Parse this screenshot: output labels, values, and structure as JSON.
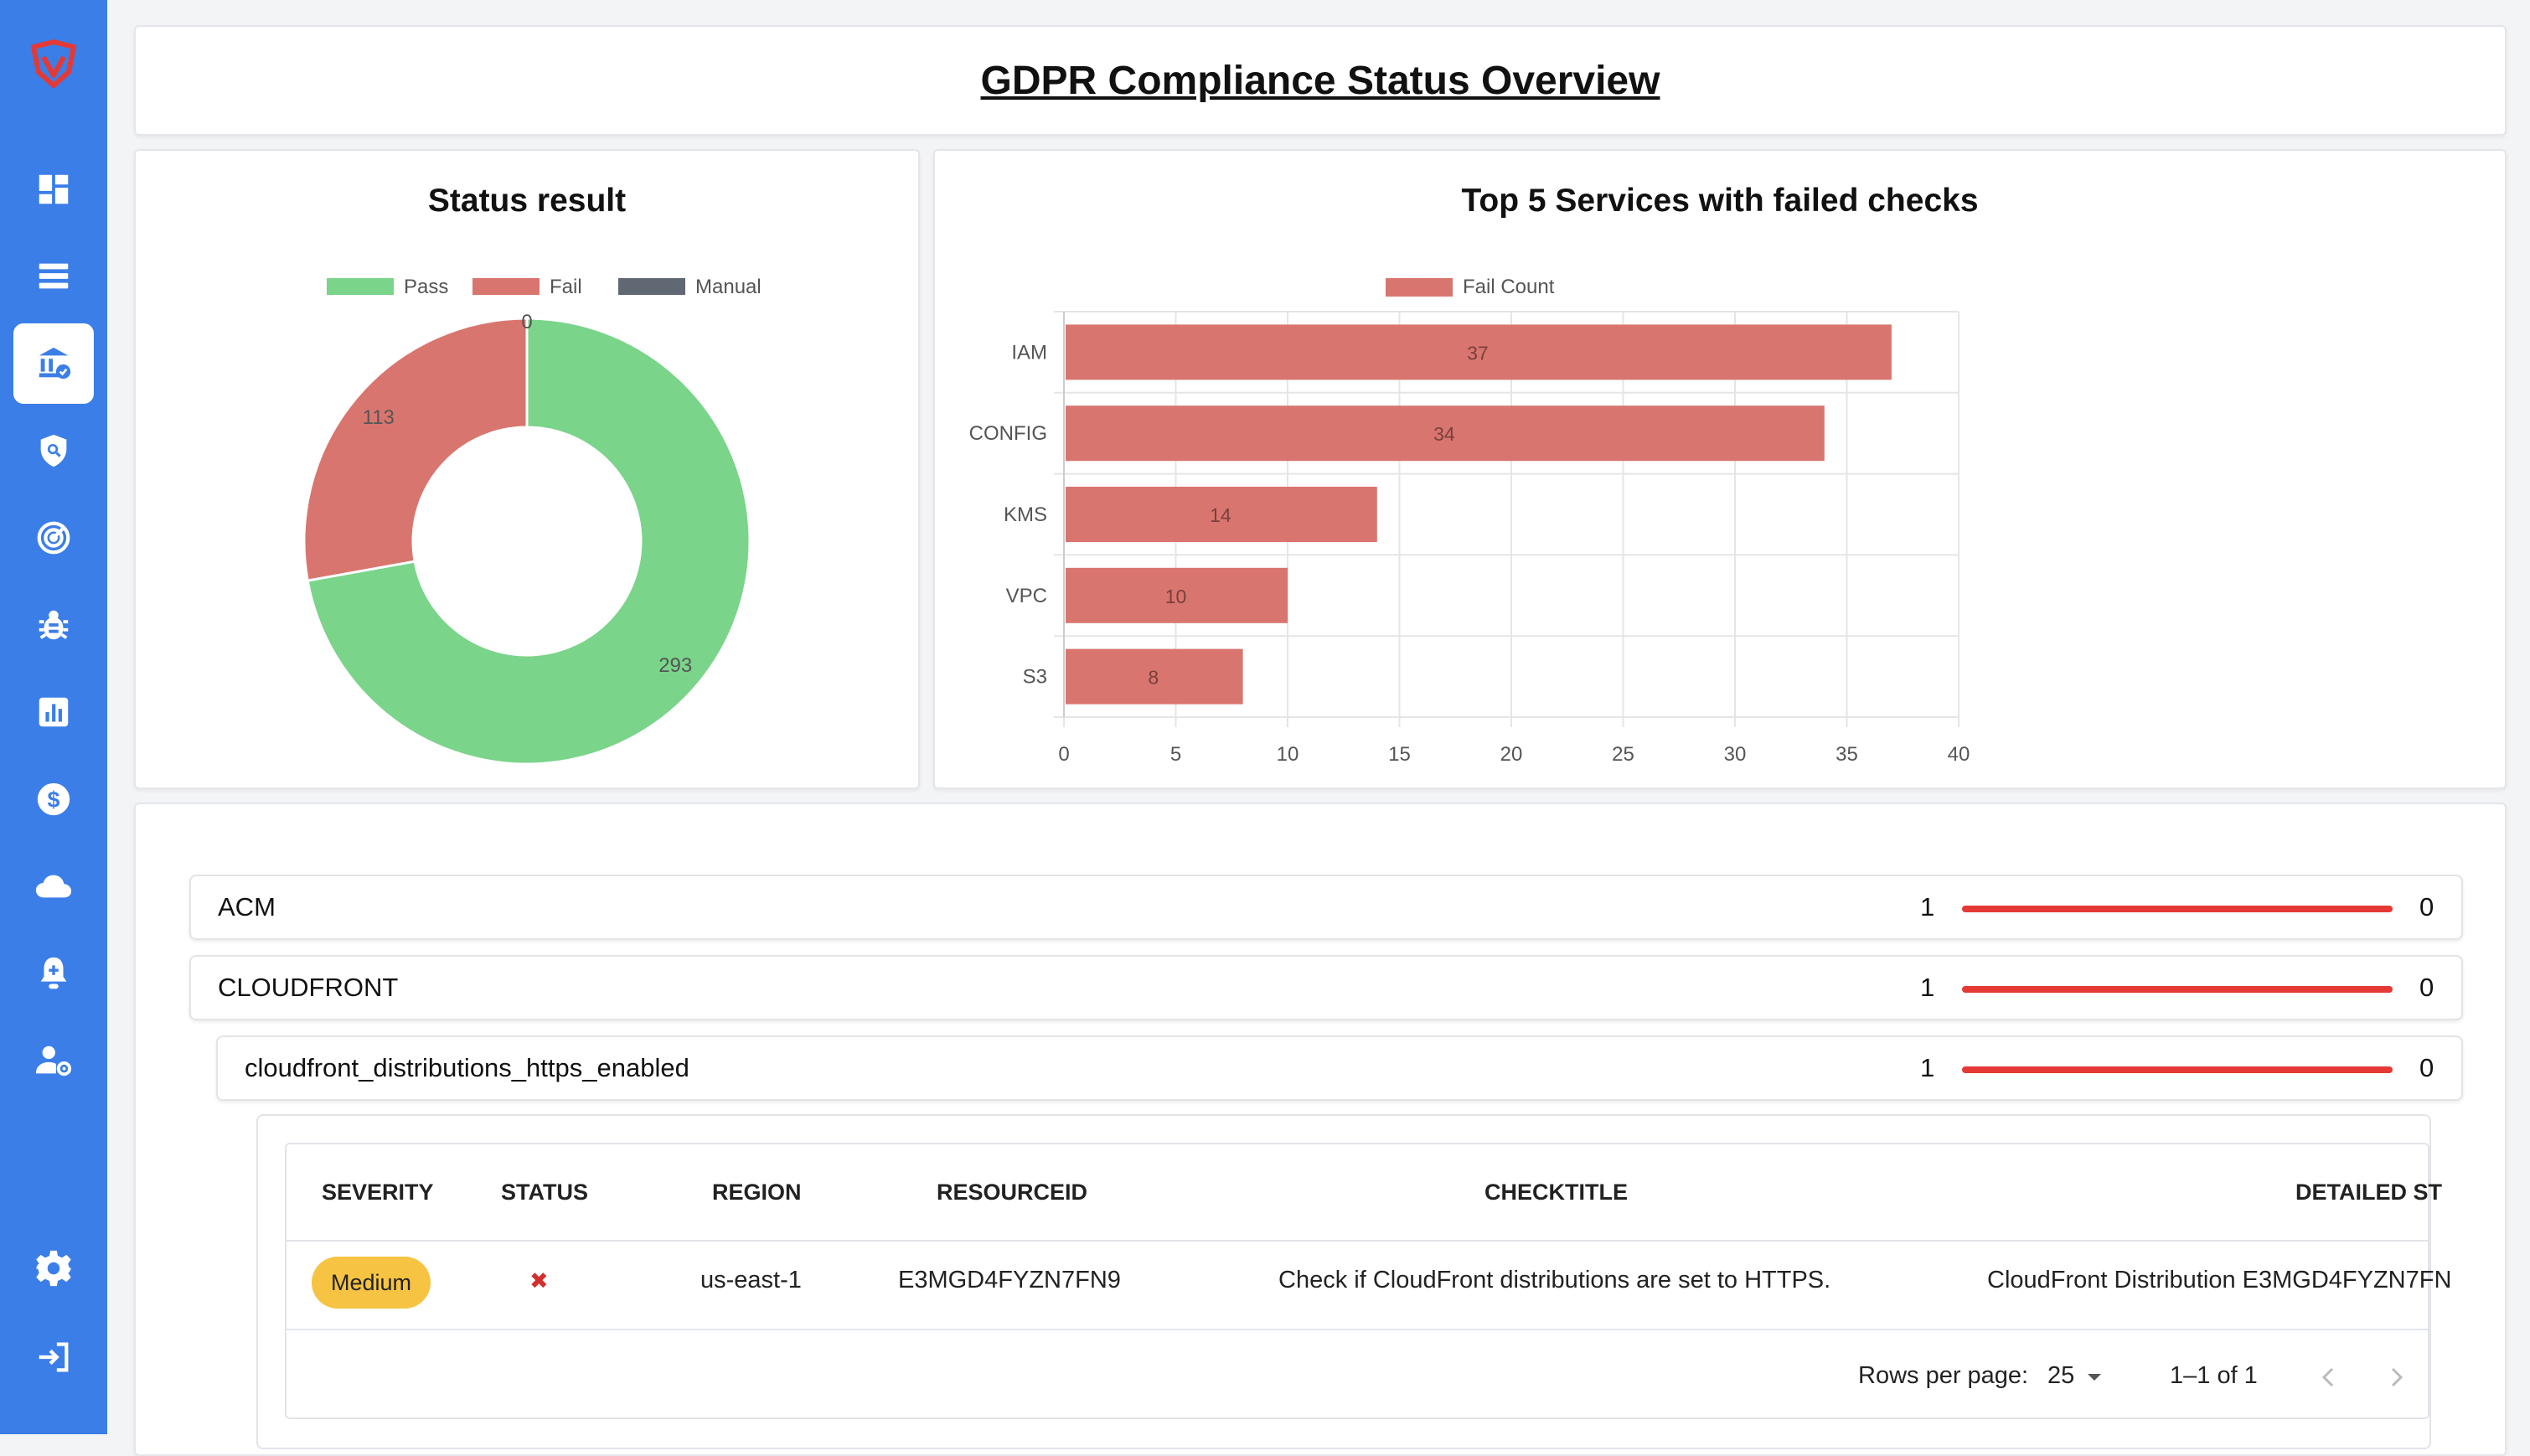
{
  "page": {
    "title": "GDPR Compliance Status Overview"
  },
  "sidebar": {
    "items": [
      {
        "icon": "dashboard-icon"
      },
      {
        "icon": "list-icon"
      },
      {
        "icon": "compliance-icon",
        "active": true
      },
      {
        "icon": "shield-search-icon"
      },
      {
        "icon": "radar-icon"
      },
      {
        "icon": "bug-icon"
      },
      {
        "icon": "bar-chart-icon"
      },
      {
        "icon": "dollar-icon"
      },
      {
        "icon": "cloud-icon"
      },
      {
        "icon": "alert-bell-icon"
      },
      {
        "icon": "user-settings-icon"
      },
      {
        "icon": "gear-icon"
      },
      {
        "icon": "logout-icon"
      }
    ]
  },
  "chart_data": [
    {
      "type": "pie",
      "title": "Status result",
      "legend": [
        "Pass",
        "Fail",
        "Manual"
      ],
      "categories": [
        "Pass",
        "Fail",
        "Manual"
      ],
      "values": [
        293,
        113,
        0
      ],
      "colors": [
        "#7ad48a",
        "#d9756f",
        "#5f6873"
      ],
      "donut": true,
      "legend_position": "top"
    },
    {
      "type": "bar",
      "orientation": "horizontal",
      "title": "Top 5 Services with failed checks",
      "legend": [
        "Fail Count"
      ],
      "categories": [
        "IAM",
        "CONFIG",
        "KMS",
        "VPC",
        "S3"
      ],
      "values": [
        37,
        34,
        14,
        10,
        8
      ],
      "xlim": [
        0,
        40
      ],
      "xticks": [
        0,
        5,
        10,
        15,
        20,
        25,
        30,
        35,
        40
      ],
      "color": "#d9756f",
      "grid": true,
      "legend_position": "top"
    }
  ],
  "accordion": [
    {
      "label": "ACM",
      "count": "1",
      "right": "0"
    },
    {
      "label": "CLOUDFRONT",
      "count": "1",
      "right": "0"
    },
    {
      "label": "cloudfront_distributions_https_enabled",
      "count": "1",
      "right": "0"
    }
  ],
  "table": {
    "headers": [
      "SEVERITY",
      "STATUS",
      "REGION",
      "RESOURCEID",
      "CHECKTITLE",
      "DETAILED ST"
    ],
    "rows": [
      {
        "severity": "Medium",
        "status": "✖",
        "region": "us-east-1",
        "resourceid": "E3MGD4FYZN7FN9",
        "checktitle": "Check if CloudFront distributions are set to HTTPS.",
        "detailed": "CloudFront Distribution E3MGD4FYZN7FN"
      }
    ],
    "pager": {
      "rows_per_page_label": "Rows per page:",
      "rows_per_page": "25",
      "range": "1–1 of 1"
    }
  },
  "colors": {
    "sidebar": "#3b7ee8",
    "pass": "#7ad48a",
    "fail": "#d9756f",
    "manual": "#5f6873",
    "bar": "#e53935",
    "badge": "#f6c343"
  }
}
